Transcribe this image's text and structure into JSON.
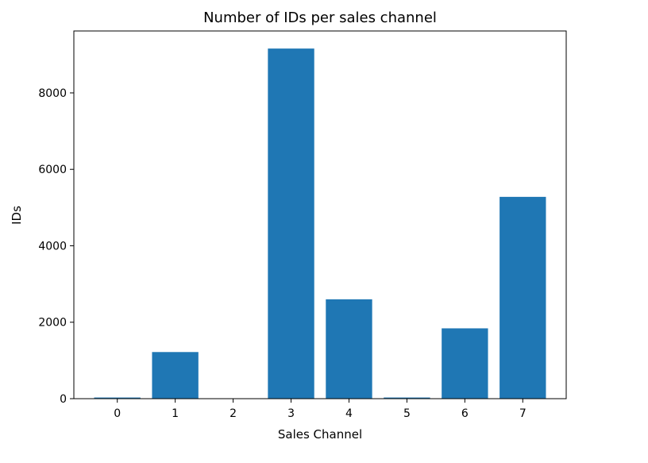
{
  "chart_data": {
    "type": "bar",
    "title": "Number of IDs per sales channel",
    "xlabel": "Sales Channel",
    "ylabel": "IDs",
    "categories": [
      "0",
      "1",
      "2",
      "3",
      "4",
      "5",
      "6",
      "7"
    ],
    "values": [
      30,
      1220,
      5,
      9160,
      2600,
      30,
      1840,
      5280
    ],
    "ylim": [
      0,
      9620
    ],
    "yticks": [
      "0",
      "2000",
      "4000",
      "6000",
      "8000"
    ],
    "ytick_values": [
      0,
      2000,
      4000,
      6000,
      8000
    ],
    "grid": false,
    "legend": "none",
    "bar_color": "#1f77b4"
  }
}
